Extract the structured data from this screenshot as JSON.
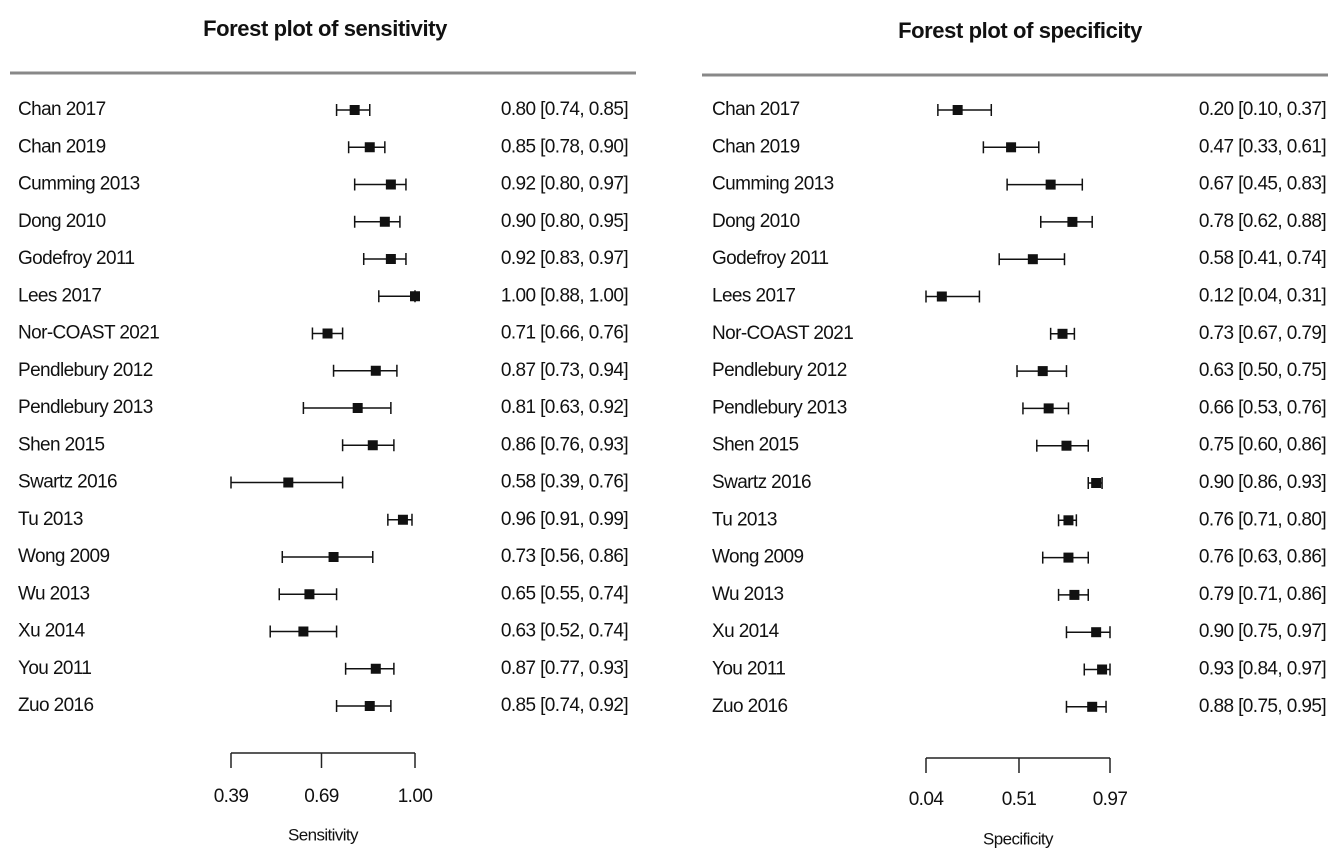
{
  "chart_data": [
    {
      "type": "forest",
      "title": "Forest plot of sensitivity",
      "xlabel": "Sensitivity",
      "categories": [
        "Chan 2017",
        "Chan 2019",
        "Cumming 2013",
        "Dong 2010",
        "Godefroy 2011",
        "Lees 2017",
        "Nor-COAST 2021",
        "Pendlebury 2012",
        "Pendlebury 2013",
        "Shen 2015",
        "Swartz 2016",
        "Tu 2013",
        "Wong 2009",
        "Wu 2013",
        "Xu 2014",
        "You 2011",
        "Zuo 2016"
      ],
      "values": [
        0.8,
        0.85,
        0.92,
        0.9,
        0.92,
        1.0,
        0.71,
        0.87,
        0.81,
        0.86,
        0.58,
        0.96,
        0.73,
        0.65,
        0.63,
        0.87,
        0.85
      ],
      "lower": [
        0.74,
        0.78,
        0.8,
        0.8,
        0.83,
        0.88,
        0.66,
        0.73,
        0.63,
        0.76,
        0.39,
        0.91,
        0.56,
        0.55,
        0.52,
        0.77,
        0.74
      ],
      "upper": [
        0.85,
        0.9,
        0.97,
        0.95,
        0.97,
        1.0,
        0.76,
        0.94,
        0.92,
        0.93,
        0.76,
        0.99,
        0.86,
        0.74,
        0.74,
        0.93,
        0.92
      ],
      "value_labels": [
        "0.80 [0.74, 0.85]",
        "0.85 [0.78, 0.90]",
        "0.92 [0.80, 0.97]",
        "0.90 [0.80, 0.95]",
        "0.92 [0.83, 0.97]",
        "1.00 [0.88, 1.00]",
        "0.71 [0.66, 0.76]",
        "0.87 [0.73, 0.94]",
        "0.81 [0.63, 0.92]",
        "0.86 [0.76, 0.93]",
        "0.58 [0.39, 0.76]",
        "0.96 [0.91, 0.99]",
        "0.73 [0.56, 0.86]",
        "0.65 [0.55, 0.74]",
        "0.63 [0.52, 0.74]",
        "0.87 [0.77, 0.93]",
        "0.85 [0.74, 0.92]"
      ],
      "xlim": [
        0.39,
        1.0
      ],
      "xticks": [
        0.39,
        0.69,
        {
          "value": 1.0,
          "label": "1.00"
        }
      ],
      "color": "#111111"
    },
    {
      "type": "forest",
      "title": "Forest plot of specificity",
      "xlabel": "Specificity",
      "categories": [
        "Chan 2017",
        "Chan 2019",
        "Cumming 2013",
        "Dong 2010",
        "Godefroy 2011",
        "Lees 2017",
        "Nor-COAST 2021",
        "Pendlebury 2012",
        "Pendlebury 2013",
        "Shen 2015",
        "Swartz 2016",
        "Tu 2013",
        "Wong 2009",
        "Wu 2013",
        "Xu 2014",
        "You 2011",
        "Zuo 2016"
      ],
      "values": [
        0.2,
        0.47,
        0.67,
        0.78,
        0.58,
        0.12,
        0.73,
        0.63,
        0.66,
        0.75,
        0.9,
        0.76,
        0.76,
        0.79,
        0.9,
        0.93,
        0.88
      ],
      "lower": [
        0.1,
        0.33,
        0.45,
        0.62,
        0.41,
        0.04,
        0.67,
        0.5,
        0.53,
        0.6,
        0.86,
        0.71,
        0.63,
        0.71,
        0.75,
        0.84,
        0.75
      ],
      "upper": [
        0.37,
        0.61,
        0.83,
        0.88,
        0.74,
        0.31,
        0.79,
        0.75,
        0.76,
        0.86,
        0.93,
        0.8,
        0.86,
        0.86,
        0.97,
        0.97,
        0.95
      ],
      "value_labels": [
        "0.20 [0.10, 0.37]",
        "0.47 [0.33, 0.61]",
        "0.67 [0.45, 0.83]",
        "0.78 [0.62, 0.88]",
        "0.58 [0.41, 0.74]",
        "0.12 [0.04, 0.31]",
        "0.73 [0.67, 0.79]",
        "0.63 [0.50, 0.75]",
        "0.66 [0.53, 0.76]",
        "0.75 [0.60, 0.86]",
        "0.90 [0.86, 0.93]",
        "0.76 [0.71, 0.80]",
        "0.76 [0.63, 0.86]",
        "0.79 [0.71, 0.86]",
        "0.90 [0.75, 0.97]",
        "0.93 [0.84, 0.97]",
        "0.88 [0.75, 0.95]"
      ],
      "xlim": [
        0.04,
        0.97
      ],
      "xticks": [
        0.04,
        0.51,
        0.97
      ],
      "color": "#111111"
    }
  ]
}
